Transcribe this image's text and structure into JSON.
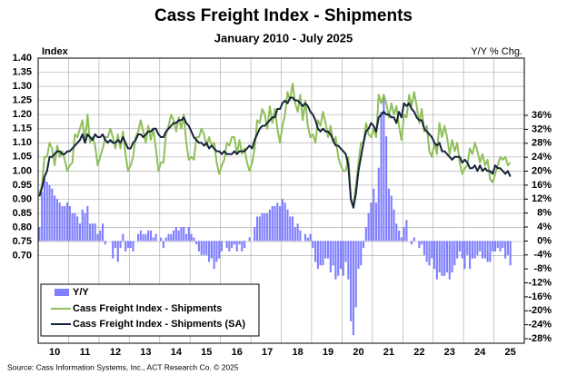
{
  "chart_data": {
    "type": "line",
    "title": "Cass Freight Index - Shipments",
    "subtitle": "January 2010 - July 2025",
    "y_label": "Index",
    "y2_label": "Y/Y % Chg.",
    "source": "Source: Cass Information Systems, Inc., ACT Research Co. © 2025",
    "categories": [
      null,
      null,
      null,
      null,
      null,
      null,
      "10",
      null,
      null,
      null,
      null,
      null,
      null,
      null,
      null,
      null,
      null,
      null,
      "11",
      null,
      null,
      null,
      null,
      null,
      null,
      null,
      null,
      null,
      null,
      null,
      "12",
      null,
      null,
      null,
      null,
      null,
      null,
      null,
      null,
      null,
      null,
      null,
      "13",
      null,
      null,
      null,
      null,
      null,
      null,
      null,
      null,
      null,
      null,
      null,
      "14",
      null,
      null,
      null,
      null,
      null,
      null,
      null,
      null,
      null,
      null,
      null,
      "15",
      null,
      null,
      null,
      null,
      null,
      null,
      null,
      null,
      null,
      null,
      null,
      "16",
      null,
      null,
      null,
      null,
      null,
      null,
      null,
      null,
      null,
      null,
      null,
      "17",
      null,
      null,
      null,
      null,
      null,
      null,
      null,
      null,
      null,
      null,
      null,
      "18",
      null,
      null,
      null,
      null,
      null,
      null,
      null,
      null,
      null,
      null,
      null,
      "19",
      null,
      null,
      null,
      null,
      null,
      null,
      null,
      null,
      null,
      null,
      null,
      "20",
      null,
      null,
      null,
      null,
      null,
      null,
      null,
      null,
      null,
      null,
      null,
      "21",
      null,
      null,
      null,
      null,
      null,
      null,
      null,
      null,
      null,
      null,
      null,
      "22",
      null,
      null,
      null,
      null,
      null,
      null,
      null,
      null,
      null,
      null,
      null,
      "23",
      null,
      null,
      null,
      null,
      null,
      null,
      null,
      null,
      null,
      null,
      null,
      "24",
      null,
      null,
      null,
      null,
      null,
      null,
      null,
      null,
      null,
      null,
      null,
      "25"
    ],
    "series": [
      {
        "name": "Y/Y",
        "type": "bar",
        "axis": "y2",
        "color": "#7f7fff",
        "values": [
          4,
          14,
          18,
          17,
          16,
          15,
          13,
          12,
          11,
          10,
          10,
          11,
          10,
          8,
          8,
          7,
          5,
          9,
          8,
          10,
          5,
          5,
          5,
          2,
          3,
          5,
          -1,
          0,
          0,
          -5,
          -2,
          -6,
          -2,
          2,
          -3,
          -2,
          -2,
          -3,
          0,
          2,
          3,
          2,
          2,
          3,
          3,
          1,
          2,
          0,
          1,
          -2,
          1,
          2,
          2,
          3,
          4,
          3,
          4,
          4,
          2,
          4,
          2,
          1,
          -1,
          -3,
          -4,
          -4,
          -4,
          -6,
          -5,
          -8,
          -6,
          -5,
          -3,
          0,
          -2,
          -3,
          -2,
          -1,
          -3,
          -1,
          -3,
          -2,
          0,
          1,
          0,
          4,
          7,
          7,
          8,
          8,
          8,
          9,
          10,
          10,
          11,
          10,
          12,
          11,
          9,
          7,
          7,
          4,
          5,
          3,
          0,
          2,
          1,
          2,
          -2,
          -6,
          -8,
          -7,
          -7,
          -5,
          -5,
          -9,
          -7,
          -11,
          -10,
          -8,
          -10,
          -6,
          -11,
          -23,
          -27,
          -19,
          -8,
          -7,
          -2,
          4,
          8,
          11,
          15,
          11,
          21,
          37,
          42,
          30,
          15,
          13,
          9,
          5,
          3,
          1,
          4,
          6,
          0,
          -1,
          1,
          0,
          -2,
          -1,
          -4,
          -6,
          -7,
          -5,
          -8,
          -11,
          -9,
          -10,
          -10,
          -9,
          -11,
          -9,
          -7,
          -5,
          -3,
          -5,
          -8,
          -4,
          -8,
          -5,
          -5,
          -4,
          -3,
          -5,
          -5,
          -6,
          -6,
          -3,
          -3,
          -2,
          -3,
          -2,
          -5,
          -4,
          -7
        ]
      },
      {
        "name": "Cass Freight Index - Shipments",
        "color": "#8fbf5a",
        "values": [
          0.92,
          0.95,
          1.05,
          1.05,
          1.1,
          1.08,
          1.02,
          1.09,
          1.05,
          1.07,
          1.04,
          1.0,
          1.02,
          1.03,
          1.13,
          1.12,
          1.15,
          1.18,
          1.1,
          1.2,
          1.1,
          1.12,
          1.09,
          1.02,
          1.05,
          1.08,
          1.12,
          1.12,
          1.15,
          1.12,
          1.08,
          1.13,
          1.08,
          1.14,
          1.06,
          1.0,
          1.02,
          1.05,
          1.12,
          1.14,
          1.18,
          1.14,
          1.1,
          1.16,
          1.11,
          1.15,
          1.08,
          1.0,
          1.03,
          1.03,
          1.13,
          1.16,
          1.2,
          1.18,
          1.14,
          1.19,
          1.15,
          1.2,
          1.1,
          1.04,
          1.05,
          1.04,
          1.12,
          1.12,
          1.15,
          1.13,
          1.09,
          1.12,
          1.09,
          1.1,
          1.03,
          0.99,
          1.02,
          1.04,
          1.1,
          1.09,
          1.12,
          1.12,
          1.06,
          1.11,
          1.06,
          1.08,
          1.03,
          1.0,
          1.03,
          1.08,
          1.18,
          1.17,
          1.22,
          1.2,
          1.15,
          1.23,
          1.17,
          1.22,
          1.15,
          1.1,
          1.16,
          1.2,
          1.28,
          1.25,
          1.31,
          1.24,
          1.21,
          1.27,
          1.18,
          1.25,
          1.16,
          1.12,
          1.13,
          1.1,
          1.18,
          1.16,
          1.21,
          1.17,
          1.12,
          1.16,
          1.1,
          1.12,
          1.05,
          1.02,
          1.0,
          1.0,
          1.05,
          0.9,
          0.88,
          0.95,
          1.03,
          1.1,
          1.1,
          1.17,
          1.13,
          1.12,
          1.15,
          1.12,
          1.27,
          1.24,
          1.27,
          1.24,
          1.19,
          1.24,
          1.2,
          1.23,
          1.16,
          1.11,
          1.2,
          1.19,
          1.27,
          1.23,
          1.28,
          1.23,
          1.17,
          1.22,
          1.14,
          1.16,
          1.07,
          1.05,
          1.1,
          1.06,
          1.17,
          1.12,
          1.16,
          1.12,
          1.06,
          1.11,
          1.07,
          1.1,
          1.03,
          0.99,
          1.01,
          1.02,
          1.08,
          1.06,
          1.1,
          1.07,
          1.03,
          1.06,
          1.02,
          1.04,
          0.97,
          0.96,
          0.99,
          1.02,
          1.05,
          1.04,
          1.05,
          1.02,
          1.03
        ]
      },
      {
        "name": "Cass Freight Index - Shipments (SA)",
        "color": "#17223b",
        "values": [
          0.91,
          0.94,
          0.98,
          1.0,
          1.05,
          1.05,
          1.06,
          1.07,
          1.07,
          1.06,
          1.06,
          1.07,
          1.07,
          1.08,
          1.09,
          1.1,
          1.11,
          1.13,
          1.1,
          1.13,
          1.12,
          1.11,
          1.13,
          1.12,
          1.12,
          1.13,
          1.11,
          1.1,
          1.11,
          1.1,
          1.1,
          1.11,
          1.1,
          1.12,
          1.1,
          1.08,
          1.08,
          1.1,
          1.11,
          1.13,
          1.13,
          1.12,
          1.13,
          1.14,
          1.14,
          1.15,
          1.15,
          1.13,
          1.12,
          1.12,
          1.14,
          1.15,
          1.16,
          1.17,
          1.17,
          1.18,
          1.18,
          1.19,
          1.17,
          1.16,
          1.14,
          1.12,
          1.11,
          1.1,
          1.1,
          1.09,
          1.1,
          1.08,
          1.09,
          1.08,
          1.07,
          1.07,
          1.06,
          1.07,
          1.06,
          1.06,
          1.06,
          1.07,
          1.06,
          1.07,
          1.07,
          1.07,
          1.08,
          1.09,
          1.08,
          1.11,
          1.13,
          1.15,
          1.16,
          1.16,
          1.17,
          1.18,
          1.19,
          1.19,
          1.22,
          1.22,
          1.24,
          1.25,
          1.24,
          1.26,
          1.26,
          1.25,
          1.25,
          1.24,
          1.23,
          1.24,
          1.23,
          1.21,
          1.2,
          1.18,
          1.15,
          1.14,
          1.15,
          1.14,
          1.14,
          1.13,
          1.11,
          1.09,
          1.09,
          1.08,
          1.07,
          1.06,
          1.02,
          0.9,
          0.87,
          0.92,
          1.0,
          1.05,
          1.1,
          1.14,
          1.15,
          1.17,
          1.16,
          1.14,
          1.19,
          1.2,
          1.21,
          1.2,
          1.2,
          1.19,
          1.19,
          1.17,
          1.21,
          1.19,
          1.24,
          1.23,
          1.24,
          1.22,
          1.21,
          1.19,
          1.18,
          1.18,
          1.15,
          1.14,
          1.13,
          1.12,
          1.1,
          1.09,
          1.1,
          1.07,
          1.07,
          1.06,
          1.05,
          1.04,
          1.05,
          1.05,
          1.05,
          1.03,
          1.04,
          1.03,
          1.01,
          1.01,
          1.02,
          1.0,
          1.02,
          1.0,
          1.01,
          1.0,
          1.0,
          0.99,
          1.02,
          1.01,
          1.01,
          1.0,
          0.99,
          1.0,
          0.98
        ]
      }
    ],
    "ylim": [
      0.39,
      1.4
    ],
    "yticks": [
      {
        "value": 0.7,
        "label": "0.70"
      },
      0.75,
      {
        "value": 0.8,
        "label": "0.80"
      },
      0.85,
      {
        "value": 0.9,
        "label": "0.90"
      },
      0.95,
      {
        "value": 1.0,
        "label": "1.00"
      },
      1.05,
      {
        "value": 1.1,
        "label": "1.10"
      },
      1.15,
      {
        "value": 1.2,
        "label": "1.20"
      },
      1.25,
      {
        "value": 1.3,
        "label": "1.30"
      },
      1.35,
      {
        "value": 1.4,
        "label": "1.40"
      }
    ],
    "y2lim": [
      -29.3,
      52.4
    ],
    "y2ticks": [
      {
        "value": -28,
        "label": "-28%"
      },
      {
        "value": -24,
        "label": "-24%"
      },
      {
        "value": -20,
        "label": "-20%"
      },
      {
        "value": -16,
        "label": "-16%"
      },
      {
        "value": -12,
        "label": "-12%"
      },
      {
        "value": -8,
        "label": "-8%"
      },
      {
        "value": -4,
        "label": "-4%"
      },
      {
        "value": 0,
        "label": "0%"
      },
      {
        "value": 4,
        "label": "4%"
      },
      {
        "value": 8,
        "label": "8%"
      },
      {
        "value": 12,
        "label": "12%"
      },
      {
        "value": 16,
        "label": "16%"
      },
      {
        "value": 20,
        "label": "20%"
      },
      {
        "value": 24,
        "label": "24%"
      },
      {
        "value": 28,
        "label": "28%"
      },
      {
        "value": 32,
        "label": "32%"
      },
      {
        "value": 36,
        "label": "36%"
      }
    ],
    "grid": true
  }
}
